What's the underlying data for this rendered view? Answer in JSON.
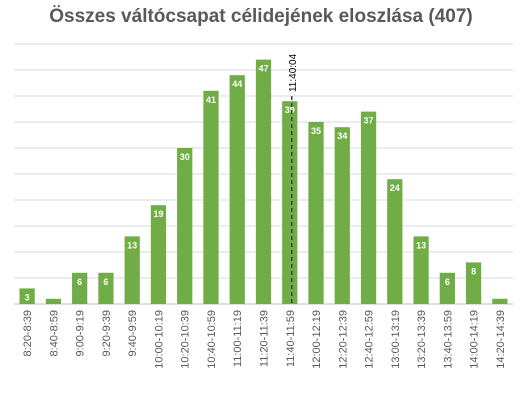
{
  "chart_data": {
    "type": "bar",
    "title": "Összes váltócsapat célidejének eloszlása (407)",
    "categories": [
      "8:20-8:39",
      "8:40-8:59",
      "9:00-9:19",
      "9:20-9:39",
      "9:40-9:59",
      "10:00-10:19",
      "10:20-10:39",
      "10:40-10:59",
      "11:00-11:19",
      "11:20-11:39",
      "11:40-11:59",
      "12:00-12:19",
      "12:20-12:39",
      "12:40-12:59",
      "13:00-13:19",
      "13:20-13:39",
      "13:40-13:59",
      "14:00-14:19",
      "14:20-14:39"
    ],
    "values": [
      3,
      1,
      6,
      6,
      13,
      19,
      30,
      41,
      44,
      47,
      39,
      35,
      34,
      37,
      24,
      13,
      6,
      8,
      1
    ],
    "ylim": [
      0,
      50
    ],
    "grid": true,
    "legend": "none",
    "bar_color": "#70AD47",
    "marker": {
      "label": "11:40:04",
      "category_index": 10,
      "style": "dashed"
    }
  }
}
